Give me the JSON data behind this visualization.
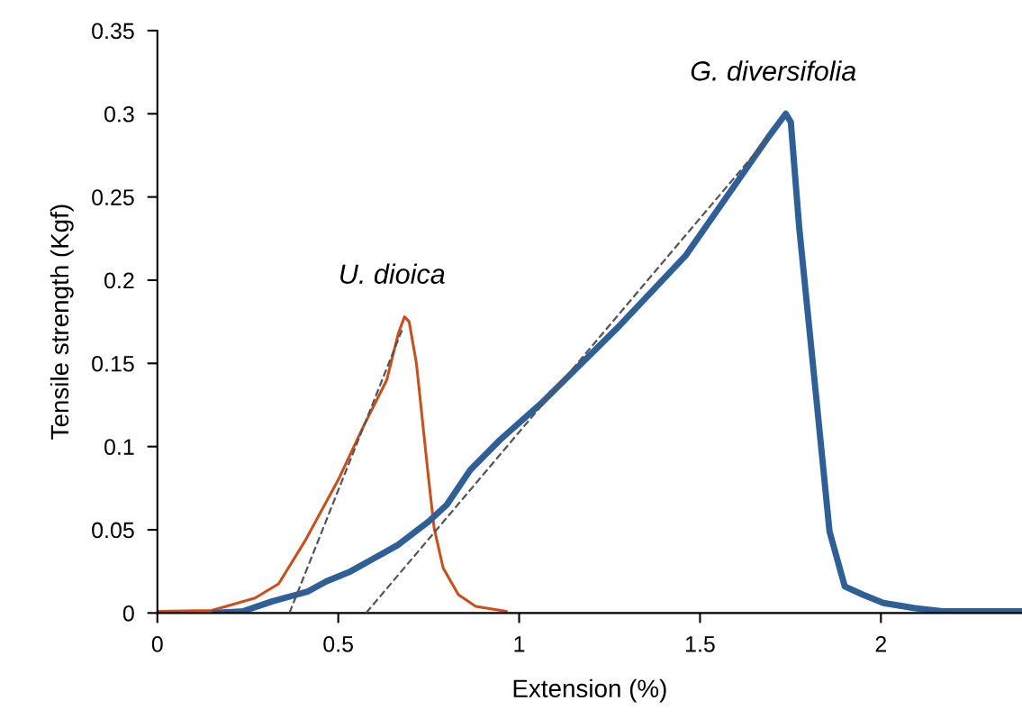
{
  "chart_data": {
    "type": "line",
    "xlabel": "Extension (%)",
    "ylabel": "Tensile strength (Kgf)",
    "xlim": [
      0,
      2.39
    ],
    "ylim": [
      0,
      0.35
    ],
    "xticks": [
      0,
      0.5,
      1,
      1.5,
      2
    ],
    "yticks": [
      0,
      0.05,
      0.1,
      0.15,
      0.2,
      0.25,
      0.3,
      0.35
    ],
    "grid": false,
    "legend": false,
    "marker": "none",
    "series": [
      {
        "name": "U. dioica",
        "color": "#c8501e",
        "line_style": "solid",
        "x": [
          0,
          0.15,
          0.27,
          0.335,
          0.41,
          0.5,
          0.567,
          0.634,
          0.666,
          0.683,
          0.696,
          0.716,
          0.733,
          0.75,
          0.765,
          0.79,
          0.832,
          0.88,
          0.964
        ],
        "values": [
          0.001,
          0.0015,
          0.009,
          0.0175,
          0.044,
          0.08,
          0.111,
          0.14,
          0.168,
          0.178,
          0.175,
          0.15,
          0.115,
          0.08,
          0.051,
          0.027,
          0.011,
          0.004,
          0.001
        ]
      },
      {
        "name": "G. diversifolia",
        "color": "#2e5f96",
        "line_style": "solid",
        "x": [
          0.16,
          0.236,
          0.318,
          0.385,
          0.417,
          0.467,
          0.534,
          0.584,
          0.666,
          0.75,
          0.8,
          0.865,
          0.947,
          1.061,
          1.27,
          1.461,
          1.689,
          1.737,
          1.751,
          1.774,
          1.821,
          1.858,
          1.9,
          1.95,
          2.007,
          2.09,
          2.17,
          2.39
        ],
        "values": [
          0,
          0.001,
          0.007,
          0.011,
          0.013,
          0.019,
          0.025,
          0.031,
          0.041,
          0.055,
          0.065,
          0.086,
          0.104,
          0.126,
          0.171,
          0.215,
          0.286,
          0.3,
          0.295,
          0.232,
          0.13,
          0.049,
          0.016,
          0.011,
          0.006,
          0.003,
          0.001,
          0.001
        ]
      },
      {
        "color": "#555555",
        "line_style": "dashed",
        "x": [
          0.365,
          0.678
        ],
        "values": [
          0,
          0.171
        ]
      },
      {
        "color": "#555555",
        "line_style": "dashed",
        "x": [
          0.577,
          1.69
        ],
        "values": [
          0,
          0.286
        ]
      }
    ]
  }
}
